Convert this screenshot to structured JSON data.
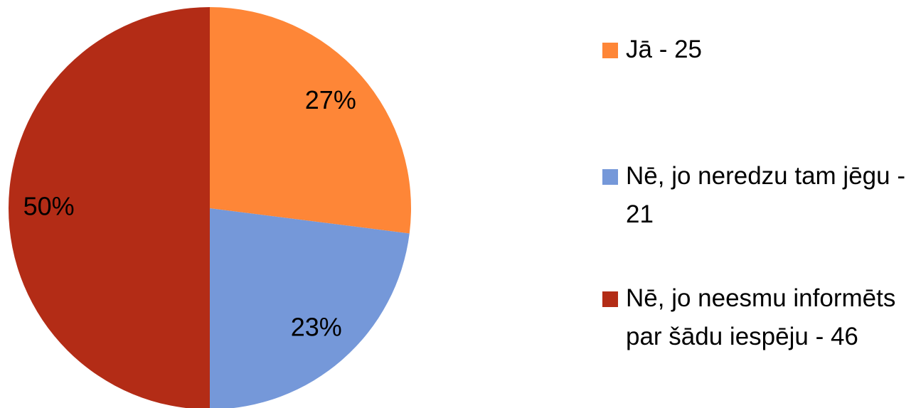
{
  "chart_data": {
    "type": "pie",
    "categories": [
      "Jā - 25",
      "Nē, jo neredzu tam jēgu - 21",
      "Nē, jo neesmu informēts par šādu iespēju - 46"
    ],
    "values": [
      27,
      23,
      50
    ],
    "value_labels": [
      "27%",
      "23%",
      "50%"
    ],
    "colors": [
      "#fe8637",
      "#7598d9",
      "#b32c16"
    ],
    "legend": "right"
  }
}
